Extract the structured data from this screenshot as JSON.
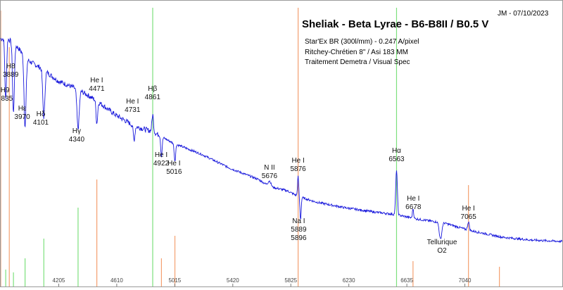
{
  "chart_data": {
    "type": "line",
    "title": "Sheliak - Beta Lyrae - B6-B8II / B0.5 V",
    "author_date": "JM - 07/10/2023",
    "subtitle_lines": [
      "Star'Ex BR (300l/mm) - 0.247 A/pixel",
      "Ritchey-Chrétien 8\" / Asi 183 MM",
      "Traitement Demetra / Visual Spec"
    ],
    "xlim": [
      3800,
      7720
    ],
    "ylim": [
      0,
      1
    ],
    "x_ticks": [
      "4205",
      "4610",
      "5015",
      "5420",
      "5825",
      "6230",
      "6635",
      "7040"
    ],
    "grid": false,
    "series_color": "#1a1adc",
    "spectrum": {
      "continuum": [
        [
          3800,
          0.88
        ],
        [
          3850,
          0.88
        ],
        [
          3900,
          0.86
        ],
        [
          4000,
          0.8
        ],
        [
          4100,
          0.77
        ],
        [
          4200,
          0.73
        ],
        [
          4340,
          0.7
        ],
        [
          4470,
          0.66
        ],
        [
          4600,
          0.61
        ],
        [
          4731,
          0.57
        ],
        [
          4861,
          0.55
        ],
        [
          5000,
          0.51
        ],
        [
          5200,
          0.47
        ],
        [
          5400,
          0.42
        ],
        [
          5600,
          0.38
        ],
        [
          5676,
          0.355
        ],
        [
          5800,
          0.34
        ],
        [
          5876,
          0.32
        ],
        [
          6000,
          0.3
        ],
        [
          6200,
          0.28
        ],
        [
          6400,
          0.265
        ],
        [
          6563,
          0.255
        ],
        [
          6700,
          0.24
        ],
        [
          6900,
          0.225
        ],
        [
          7065,
          0.2
        ],
        [
          7300,
          0.175
        ],
        [
          7500,
          0.165
        ],
        [
          7720,
          0.16
        ]
      ],
      "features": [
        {
          "center": 3835,
          "depth": -0.22,
          "width": 8
        },
        {
          "center": 3889,
          "depth": -0.25,
          "width": 9
        },
        {
          "center": 3970,
          "depth": -0.25,
          "width": 10
        },
        {
          "center": 4101,
          "depth": -0.17,
          "width": 10
        },
        {
          "center": 4340,
          "depth": -0.14,
          "width": 11
        },
        {
          "center": 4471,
          "depth": -0.08,
          "width": 8
        },
        {
          "center": 4731,
          "depth": -0.05,
          "width": 8
        },
        {
          "center": 4861,
          "depth": 0.06,
          "width": 8
        },
        {
          "center": 4922,
          "depth": -0.07,
          "width": 7
        },
        {
          "center": 5016,
          "depth": -0.06,
          "width": 7
        },
        {
          "center": 5676,
          "depth": 0.02,
          "width": 14
        },
        {
          "center": 5876,
          "depth": 0.07,
          "width": 6
        },
        {
          "center": 5893,
          "depth": -0.08,
          "width": 6
        },
        {
          "center": 6563,
          "depth": 0.16,
          "width": 8
        },
        {
          "center": 6678,
          "depth": 0.035,
          "width": 6
        },
        {
          "center": 6870,
          "depth": -0.06,
          "width": 12
        },
        {
          "center": 7065,
          "depth": 0.03,
          "width": 8
        }
      ]
    },
    "reference_lines": {
      "green": [
        {
          "wl": 3835,
          "h": 0.06
        },
        {
          "wl": 3889,
          "h": 0.05
        },
        {
          "wl": 3970,
          "h": 0.1
        },
        {
          "wl": 4101,
          "h": 0.17
        },
        {
          "wl": 4340,
          "h": 0.28
        },
        {
          "wl": 4861,
          "h": 0.99
        },
        {
          "wl": 6563,
          "h": 0.99
        }
      ],
      "orange": [
        {
          "wl": 3800,
          "h": 0.98
        },
        {
          "wl": 3860,
          "h": 0.85
        },
        {
          "wl": 4471,
          "h": 0.38
        },
        {
          "wl": 4922,
          "h": 0.1
        },
        {
          "wl": 5016,
          "h": 0.18
        },
        {
          "wl": 5876,
          "h": 0.99
        },
        {
          "wl": 6678,
          "h": 0.09
        },
        {
          "wl": 7065,
          "h": 0.36
        },
        {
          "wl": 7281,
          "h": 0.07
        }
      ]
    },
    "annotations": [
      {
        "lines": [
          "H8",
          "3889"
        ],
        "wl": 3870,
        "y": 0.775
      },
      {
        "lines": [
          "H9",
          "3835"
        ],
        "wl": 3830,
        "y": 0.69
      },
      {
        "lines": [
          "Hε",
          "3970"
        ],
        "wl": 3950,
        "y": 0.625
      },
      {
        "lines": [
          "Hδ",
          "4101"
        ],
        "wl": 4080,
        "y": 0.605
      },
      {
        "lines": [
          "Hγ",
          "4340"
        ],
        "wl": 4330,
        "y": 0.545
      },
      {
        "lines": [
          "He I",
          "4471"
        ],
        "wl": 4470,
        "y": 0.725
      },
      {
        "lines": [
          "He I",
          "4731"
        ],
        "wl": 4720,
        "y": 0.65
      },
      {
        "lines": [
          "Hβ",
          "4861"
        ],
        "wl": 4860,
        "y": 0.695
      },
      {
        "lines": [
          "He I",
          "4922"
        ],
        "wl": 4920,
        "y": 0.46
      },
      {
        "lines": [
          "He I",
          "5016"
        ],
        "wl": 5010,
        "y": 0.43
      },
      {
        "lines": [
          "N II",
          "5676"
        ],
        "wl": 5676,
        "y": 0.415
      },
      {
        "lines": [
          "He I",
          "5876"
        ],
        "wl": 5876,
        "y": 0.44
      },
      {
        "lines": [
          "Hα",
          "6563"
        ],
        "wl": 6563,
        "y": 0.475
      },
      {
        "lines": [
          "He I",
          "6678"
        ],
        "wl": 6680,
        "y": 0.305
      },
      {
        "lines": [
          "He I",
          "7065"
        ],
        "wl": 7065,
        "y": 0.27
      },
      {
        "lines": [
          "Na I",
          "5889",
          "5896"
        ],
        "wl": 5880,
        "y": 0.225
      },
      {
        "lines": [
          "Tellurique",
          "O2"
        ],
        "wl": 6880,
        "y": 0.15
      }
    ]
  }
}
